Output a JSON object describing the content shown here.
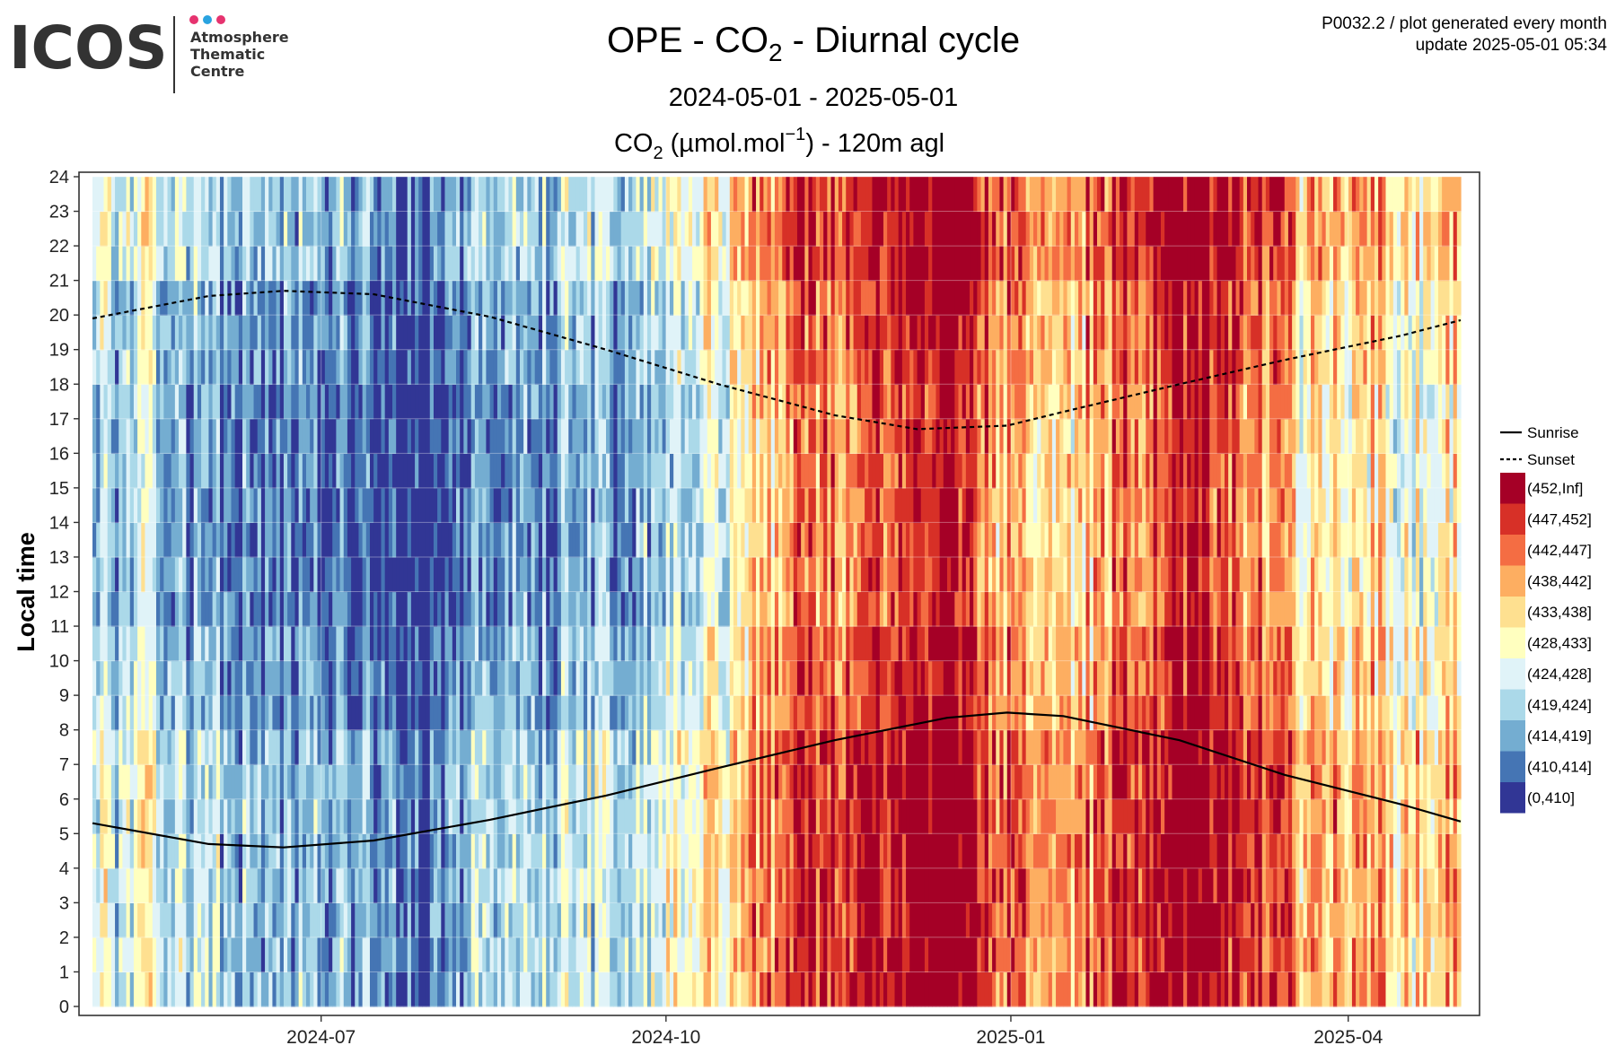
{
  "logo": {
    "wordmark": "ICOS",
    "subtitle_lines": [
      "Atmosphere",
      "Thematic",
      "Centre"
    ],
    "dot_colors": [
      "#e6336f",
      "#29a3e0",
      "#e6336f"
    ],
    "text_color": "#333333"
  },
  "header": {
    "title_pre": "OPE - CO",
    "title_sub": "2",
    "title_post": " - Diurnal cycle",
    "date_range": "2024-05-01 - 2025-05-01",
    "variable_pre": "CO",
    "variable_sub": "2",
    "variable_mid": " (µmol.mol",
    "variable_sup": "−1",
    "variable_post": ") - 120m agl",
    "meta_line1": "P0032.2 / plot generated every month",
    "meta_line2": "update  2025-05-01 05:34"
  },
  "chart_data": {
    "type": "heatmap",
    "title": "OPE - CO2 - Diurnal cycle",
    "subtitle": "2024-05-01 - 2025-05-01",
    "value_label": "CO2 (µmol.mol-1) - 120m agl",
    "ylabel": "Local time",
    "xlabel": "",
    "x_range": [
      "2024-05-01",
      "2025-05-01"
    ],
    "x_ticks": [
      "2024-07",
      "2024-10",
      "2025-01",
      "2025-04"
    ],
    "x_tick_dates": [
      "2024-07-01",
      "2024-10-01",
      "2025-01-01",
      "2025-04-01"
    ],
    "y_range": [
      0,
      24
    ],
    "y_ticks": [
      0,
      1,
      2,
      3,
      4,
      5,
      6,
      7,
      8,
      9,
      10,
      11,
      12,
      13,
      14,
      15,
      16,
      17,
      18,
      19,
      20,
      21,
      22,
      23,
      24
    ],
    "grid": true,
    "legend_position": "right",
    "bins": [
      {
        "label": "(452,Inf]",
        "color": "#a50026"
      },
      {
        "label": "(447,452]",
        "color": "#d73027"
      },
      {
        "label": "(442,447]",
        "color": "#f46d43"
      },
      {
        "label": "(438,442]",
        "color": "#fdae61"
      },
      {
        "label": "(433,438]",
        "color": "#fee090"
      },
      {
        "label": "(428,433]",
        "color": "#ffffbf"
      },
      {
        "label": "(424,428]",
        "color": "#e0f3f8"
      },
      {
        "label": "(419,424]",
        "color": "#abd9e9"
      },
      {
        "label": "(414,419]",
        "color": "#74add1"
      },
      {
        "label": "(410,414]",
        "color": "#4575b4"
      },
      {
        "label": "(0,410]",
        "color": "#313695"
      }
    ],
    "lines": [
      {
        "name": "Sunrise",
        "style": "solid",
        "color": "#000000",
        "points": [
          [
            "2024-05-01",
            5.3
          ],
          [
            "2024-06-01",
            4.7
          ],
          [
            "2024-06-21",
            4.6
          ],
          [
            "2024-07-15",
            4.8
          ],
          [
            "2024-08-15",
            5.4
          ],
          [
            "2024-09-15",
            6.1
          ],
          [
            "2024-10-15",
            6.9
          ],
          [
            "2024-11-15",
            7.7
          ],
          [
            "2024-12-15",
            8.35
          ],
          [
            "2024-12-31",
            8.5
          ],
          [
            "2025-01-15",
            8.4
          ],
          [
            "2025-02-15",
            7.7
          ],
          [
            "2025-03-15",
            6.7
          ],
          [
            "2025-04-15",
            5.85
          ],
          [
            "2025-05-01",
            5.35
          ]
        ]
      },
      {
        "name": "Sunset",
        "style": "dashed",
        "color": "#000000",
        "points": [
          [
            "2024-05-01",
            19.9
          ],
          [
            "2024-06-01",
            20.55
          ],
          [
            "2024-06-21",
            20.7
          ],
          [
            "2024-07-15",
            20.6
          ],
          [
            "2024-08-15",
            19.95
          ],
          [
            "2024-09-15",
            19.0
          ],
          [
            "2024-10-15",
            18.0
          ],
          [
            "2024-11-15",
            17.1
          ],
          [
            "2024-12-07",
            16.7
          ],
          [
            "2024-12-31",
            16.8
          ],
          [
            "2025-01-15",
            17.2
          ],
          [
            "2025-02-15",
            18.0
          ],
          [
            "2025-03-15",
            18.7
          ],
          [
            "2025-04-15",
            19.4
          ],
          [
            "2025-05-01",
            19.85
          ]
        ]
      }
    ],
    "weekly_level_bin": [
      7,
      7,
      6,
      8,
      8,
      8,
      8,
      9,
      8,
      8,
      9,
      9,
      10,
      10,
      9,
      8,
      8,
      8,
      7,
      7,
      8,
      7,
      6,
      6,
      5,
      4,
      3,
      2,
      2,
      2,
      1,
      1,
      0,
      0,
      2,
      3,
      4,
      4,
      3,
      2,
      1,
      1,
      0,
      1,
      2,
      2,
      4,
      4,
      4,
      4,
      5,
      5,
      4,
      5,
      5,
      6
    ]
  }
}
